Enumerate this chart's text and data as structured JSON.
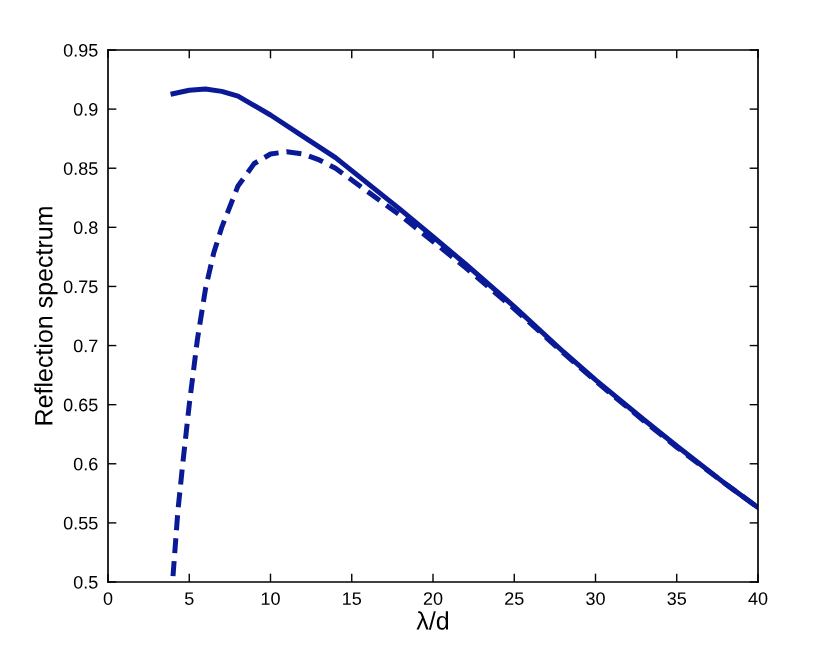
{
  "chart_data": {
    "type": "line",
    "xlabel": "λ/d",
    "ylabel": "Reflection spectrum",
    "xlim": [
      0,
      40
    ],
    "ylim": [
      0.5,
      0.95
    ],
    "xticks": [
      0,
      5,
      10,
      15,
      20,
      25,
      30,
      35,
      40
    ],
    "yticks": [
      0.5,
      0.55,
      0.6,
      0.65,
      0.7,
      0.75,
      0.8,
      0.85,
      0.9,
      0.95
    ],
    "grid": false,
    "legend": false,
    "series": [
      {
        "color": "#0a1a96",
        "line_style": "solid",
        "x": [
          4,
          5,
          6,
          7,
          8,
          10,
          12,
          14,
          16,
          18,
          20,
          22,
          25,
          28,
          30,
          33,
          35,
          38,
          40
        ],
        "values": [
          0.913,
          0.916,
          0.917,
          0.915,
          0.911,
          0.895,
          0.877,
          0.859,
          0.837,
          0.815,
          0.792,
          0.769,
          0.733,
          0.695,
          0.671,
          0.637,
          0.615,
          0.583,
          0.563
        ]
      },
      {
        "color": "#0a1a96",
        "line_style": "dashed",
        "x": [
          4,
          4.3,
          4.6,
          5,
          5.5,
          6,
          6.5,
          7,
          8,
          9,
          10,
          11,
          12,
          13,
          14,
          16,
          18,
          20,
          22,
          25,
          28,
          30,
          33,
          35,
          38,
          40
        ],
        "values": [
          0.505,
          0.56,
          0.6,
          0.65,
          0.705,
          0.748,
          0.778,
          0.8,
          0.835,
          0.854,
          0.862,
          0.864,
          0.862,
          0.857,
          0.85,
          0.83,
          0.81,
          0.788,
          0.766,
          0.731,
          0.694,
          0.67,
          0.636,
          0.614,
          0.583,
          0.563
        ]
      }
    ]
  }
}
